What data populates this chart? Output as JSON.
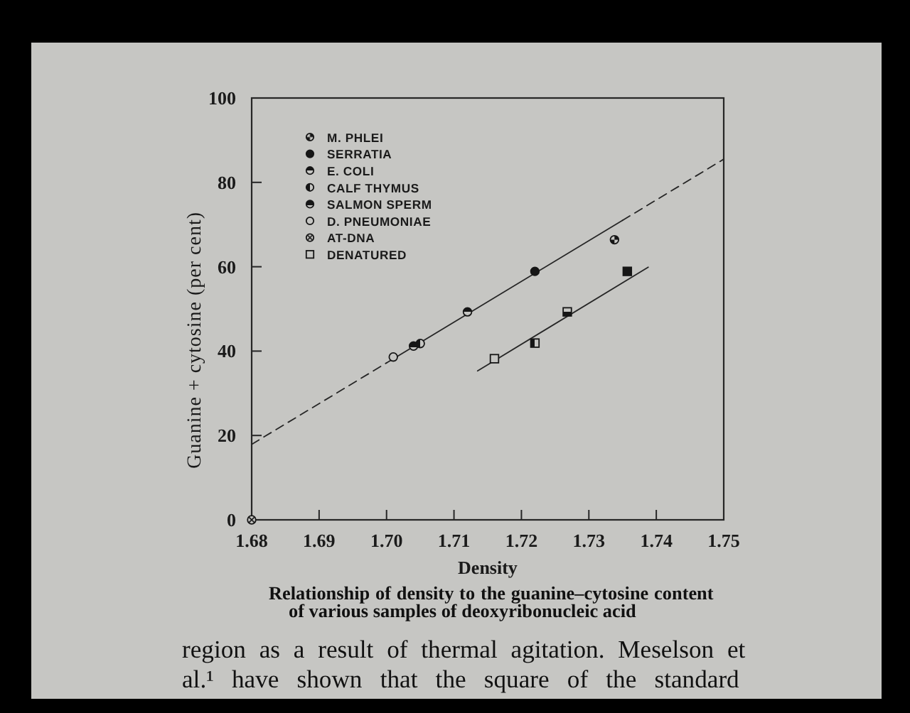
{
  "chart_data": {
    "type": "scatter",
    "xlabel": "Density",
    "ylabel": "Guanine + cytosine (per cent)",
    "annotations": [
      "Relationship of density to the guanine–cytosine content",
      "of various samples of deoxyribonucleic acid",
      "region as a result of thermal agitation. Meselson et",
      "al.¹ have shown that the square of the standard"
    ],
    "xlim": [
      1.68,
      1.75
    ],
    "ylim": [
      0,
      100
    ],
    "xticks": [
      1.68,
      1.69,
      {
        "value": 1.7,
        "label": "1.70"
      },
      1.71,
      1.72,
      1.73,
      1.74,
      1.75
    ],
    "yticks": [
      0,
      20,
      40,
      60,
      80,
      100
    ],
    "legend": "top left",
    "series": [
      {
        "name": "M. PHLEI",
        "color": "#161616",
        "marker": "circle",
        "x": [
          1.7338
        ],
        "values": [
          66.4
        ]
      },
      {
        "name": "SERRATIA",
        "color": "#161616",
        "marker": "circle",
        "x": [
          1.722
        ],
        "values": [
          58.9
        ]
      },
      {
        "name": "E. COLI",
        "color": "#161616",
        "marker": "circle",
        "x": [
          1.712
        ],
        "values": [
          49.3
        ]
      },
      {
        "name": "CALF THYMUS",
        "color": "#161616",
        "marker": "circle",
        "x": [
          1.705
        ],
        "values": [
          41.8
        ]
      },
      {
        "name": "SALMON SPERM",
        "color": "#161616",
        "marker": "circle",
        "x": [
          1.704
        ],
        "values": [
          41.2
        ]
      },
      {
        "name": "D. PNEUMONIAE",
        "color": "#161616",
        "marker": "circle",
        "x": [
          1.701
        ],
        "values": [
          38.6
        ]
      },
      {
        "name": "AT-DNA",
        "color": "#161616",
        "marker": "circle",
        "x": [
          1.68
        ],
        "values": [
          0
        ]
      },
      {
        "name": "DENATURED",
        "color": "#161616",
        "marker": "square",
        "x": [
          1.716,
          1.722,
          1.7268,
          1.7357
        ],
        "values": [
          38.2,
          41.9,
          49.3,
          58.9
        ]
      },
      {
        "type": "line",
        "color": "#262626",
        "line_style": "dashed",
        "x": [
          1.68,
          1.7
        ],
        "values": [
          17.9,
          37.2
        ]
      },
      {
        "type": "line",
        "color": "#262626",
        "line_style": "solid",
        "x": [
          1.7,
          1.735
        ],
        "values": [
          37.2,
          71.0
        ]
      },
      {
        "type": "line",
        "color": "#262626",
        "line_style": "dashed",
        "x": [
          1.735,
          1.75
        ],
        "values": [
          71.0,
          85.5
        ]
      },
      {
        "type": "line",
        "color": "#262626",
        "line_style": "solid",
        "x": [
          1.7135,
          1.7388
        ],
        "values": [
          35.3,
          59.9
        ]
      }
    ]
  }
}
